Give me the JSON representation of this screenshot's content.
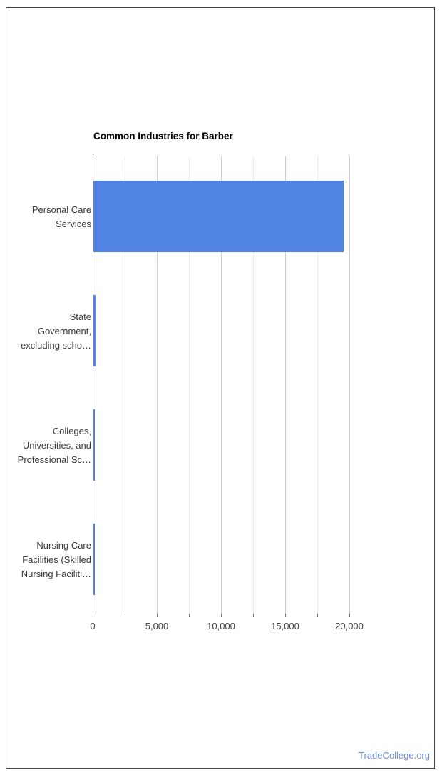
{
  "chart_data": {
    "type": "bar",
    "orientation": "horizontal",
    "title": "Common Industries for Barber",
    "categories": [
      "Personal Care\nServices",
      "State\nGovernment,\nexcluding scho…",
      "Colleges,\nUniversities, and\nProfessional Sc…",
      "Nursing Care\nFacilities (Skilled\nNursing Faciliti…"
    ],
    "values": [
      19500,
      150,
      120,
      130
    ],
    "xlabel": "",
    "ylabel": "",
    "xlim": [
      0,
      20000
    ],
    "x_tick_values": [
      0,
      5000,
      10000,
      15000,
      20000
    ],
    "x_tick_labels": [
      "0",
      "5,000",
      "10,000",
      "15,000",
      "20,000"
    ],
    "minor_grid_step": 2500,
    "grid": true,
    "legend_position": "none",
    "bar_color": "#5083e4"
  },
  "footer": {
    "link_label": "TradeCollege.org",
    "link_color": "#7590da"
  }
}
